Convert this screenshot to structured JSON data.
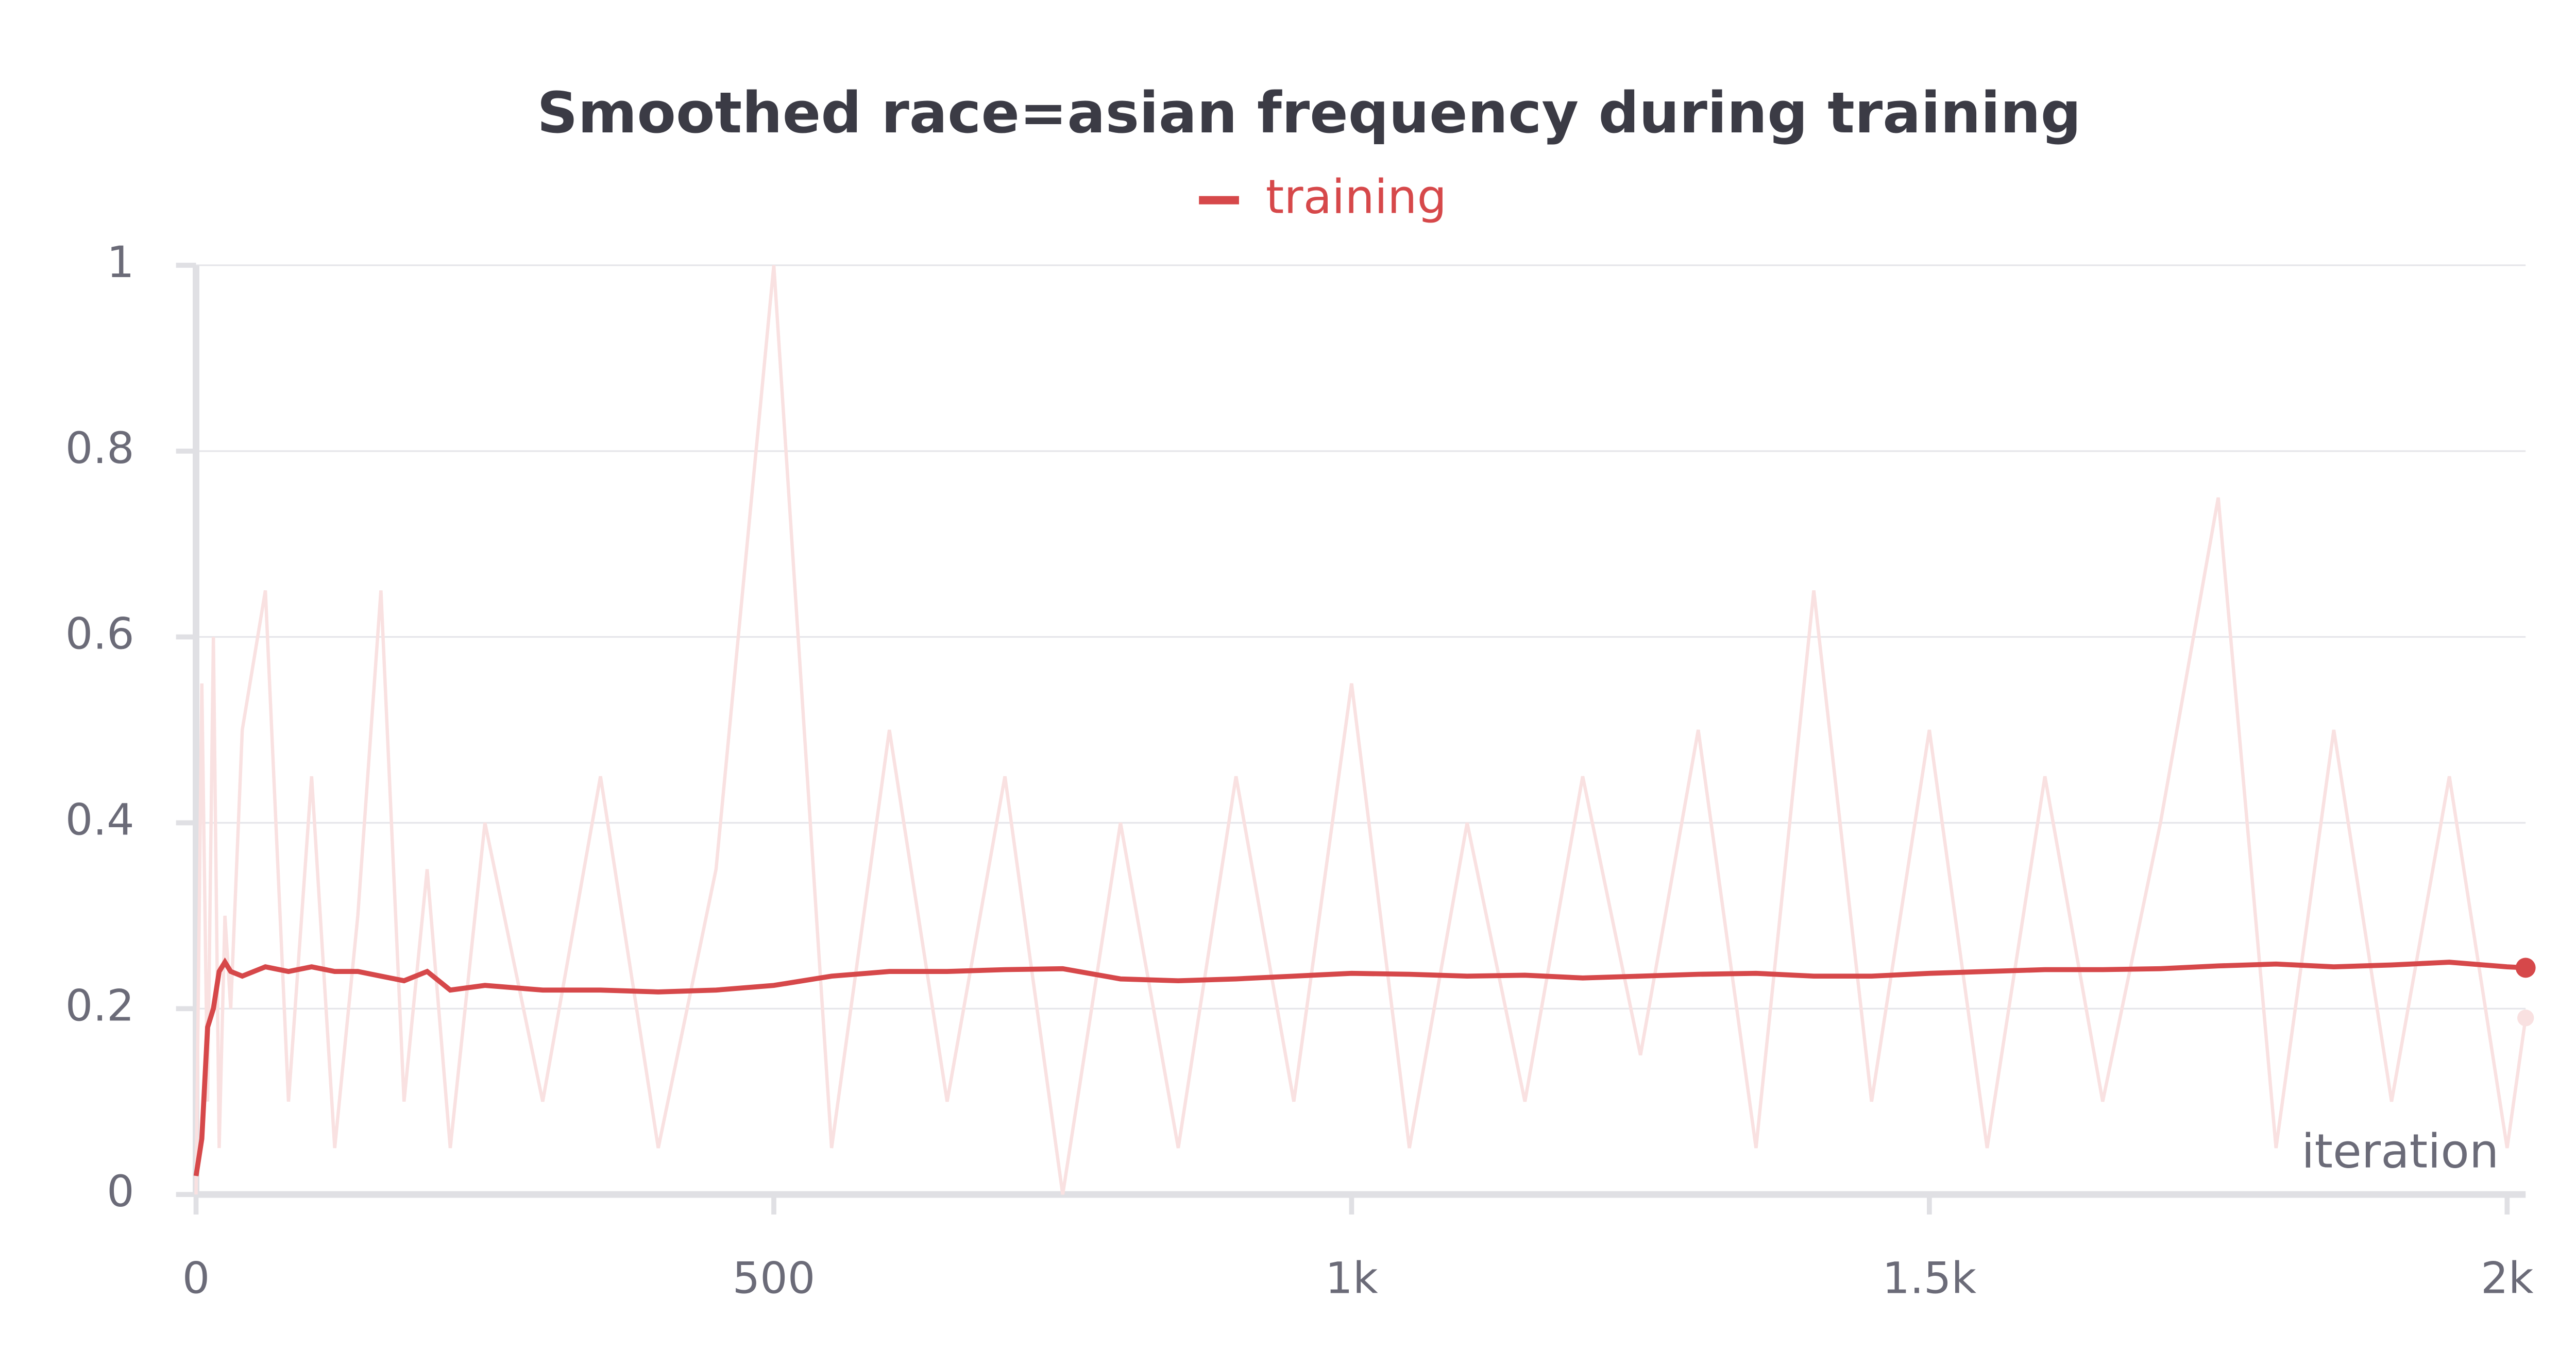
{
  "chart_data": {
    "type": "line",
    "title": "Smoothed race=asian frequency during training",
    "x_label": "iteration",
    "x": [
      0,
      5,
      10,
      15,
      20,
      25,
      30,
      40,
      60,
      80,
      100,
      120,
      140,
      160,
      180,
      200,
      220,
      250,
      300,
      350,
      400,
      450,
      500,
      550,
      600,
      650,
      700,
      750,
      800,
      850,
      900,
      950,
      1000,
      1050,
      1100,
      1150,
      1200,
      1250,
      1300,
      1350,
      1400,
      1450,
      1500,
      1550,
      1600,
      1650,
      1700,
      1750,
      1800,
      1850,
      1900,
      1950,
      2000,
      2016
    ],
    "series": [
      {
        "name": "training",
        "color": "#d6484a",
        "raw_color": "#f9e1e1",
        "values": [
          0.02,
          0.06,
          0.18,
          0.2,
          0.24,
          0.25,
          0.24,
          0.235,
          0.245,
          0.24,
          0.245,
          0.24,
          0.24,
          0.235,
          0.23,
          0.24,
          0.22,
          0.225,
          0.22,
          0.22,
          0.218,
          0.22,
          0.225,
          0.235,
          0.24,
          0.24,
          0.242,
          0.243,
          0.232,
          0.23,
          0.232,
          0.235,
          0.238,
          0.237,
          0.235,
          0.236,
          0.233,
          0.235,
          0.237,
          0.238,
          0.235,
          0.235,
          0.238,
          0.24,
          0.242,
          0.242,
          0.243,
          0.246,
          0.248,
          0.245,
          0.247,
          0.25,
          0.245,
          0.244
        ],
        "raw_values": [
          0,
          0.55,
          0.1,
          0.6,
          0.05,
          0.3,
          0.2,
          0.5,
          0.65,
          0.1,
          0.45,
          0.05,
          0.3,
          0.65,
          0.1,
          0.35,
          0.05,
          0.4,
          0.1,
          0.45,
          0.05,
          0.35,
          1.0,
          0.05,
          0.5,
          0.1,
          0.45,
          0,
          0.4,
          0.05,
          0.45,
          0.1,
          0.55,
          0.05,
          0.4,
          0.1,
          0.45,
          0.15,
          0.5,
          0.05,
          0.65,
          0.1,
          0.5,
          0.05,
          0.45,
          0.1,
          0.4,
          0.75,
          0.05,
          0.5,
          0.1,
          0.45,
          0.05,
          0.19
        ]
      }
    ],
    "xlim": [
      0,
      2016
    ],
    "ylim": [
      0,
      1
    ],
    "xticks": [
      0,
      500,
      {
        "value": 1000,
        "label": "1k"
      },
      {
        "value": 1500,
        "label": "1.5k"
      },
      {
        "value": 2000,
        "label": "2k"
      }
    ],
    "yticks": [
      0,
      0.2,
      0.4,
      0.6,
      0.8,
      1
    ],
    "grid": true
  }
}
